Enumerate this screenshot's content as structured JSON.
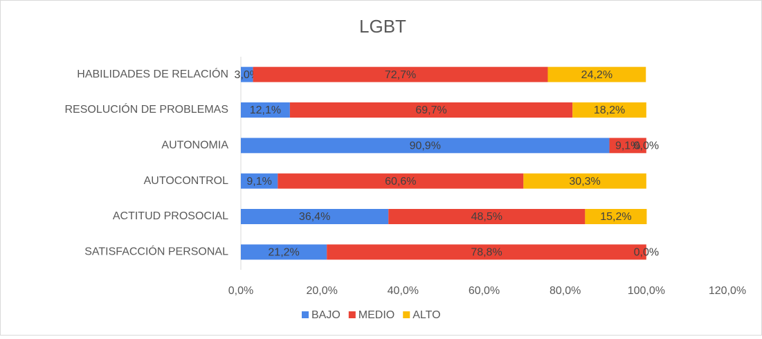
{
  "chart_data": {
    "type": "bar",
    "orientation": "horizontal",
    "stacked": true,
    "title": "LGBT",
    "categories": [
      "HABILIDADES DE RELACIÓN",
      "RESOLUCIÓN DE PROBLEMAS",
      "AUTONOMIA",
      "AUTOCONTROL",
      "ACTITUD PROSOCIAL",
      "SATISFACCIÓN PERSONAL"
    ],
    "series": [
      {
        "name": "BAJO",
        "color": "#4a86e8",
        "values": [
          3.0,
          12.1,
          90.9,
          9.1,
          36.4,
          21.2
        ],
        "value_labels": [
          "3,0%",
          "12,1%",
          "90,9%",
          "9,1%",
          "36,4%",
          "21,2%"
        ]
      },
      {
        "name": "MEDIO",
        "color": "#ea4335",
        "values": [
          72.7,
          69.7,
          9.1,
          60.6,
          48.5,
          78.8
        ],
        "value_labels": [
          "72,7%",
          "69,7%",
          "9,1%",
          "60,6%",
          "48,5%",
          "78,8%"
        ]
      },
      {
        "name": "ALTO",
        "color": "#fbbc04",
        "values": [
          24.2,
          18.2,
          0.0,
          30.3,
          15.2,
          0.0
        ],
        "value_labels": [
          "24,2%",
          "18,2%",
          "0,0%",
          "30,3%",
          "15,2%",
          "0,0%"
        ]
      }
    ],
    "xlim": [
      0,
      120
    ],
    "xticks": [
      {
        "value": 0,
        "label": "0,0%"
      },
      {
        "value": 20,
        "label": "20,0%"
      },
      {
        "value": 40,
        "label": "40,0%"
      },
      {
        "value": 60,
        "label": "60,0%"
      },
      {
        "value": 80,
        "label": "80,0%"
      },
      {
        "value": 100,
        "label": "100,0%"
      },
      {
        "value": 120,
        "label": "120,0%"
      }
    ],
    "legend": "bottom"
  }
}
